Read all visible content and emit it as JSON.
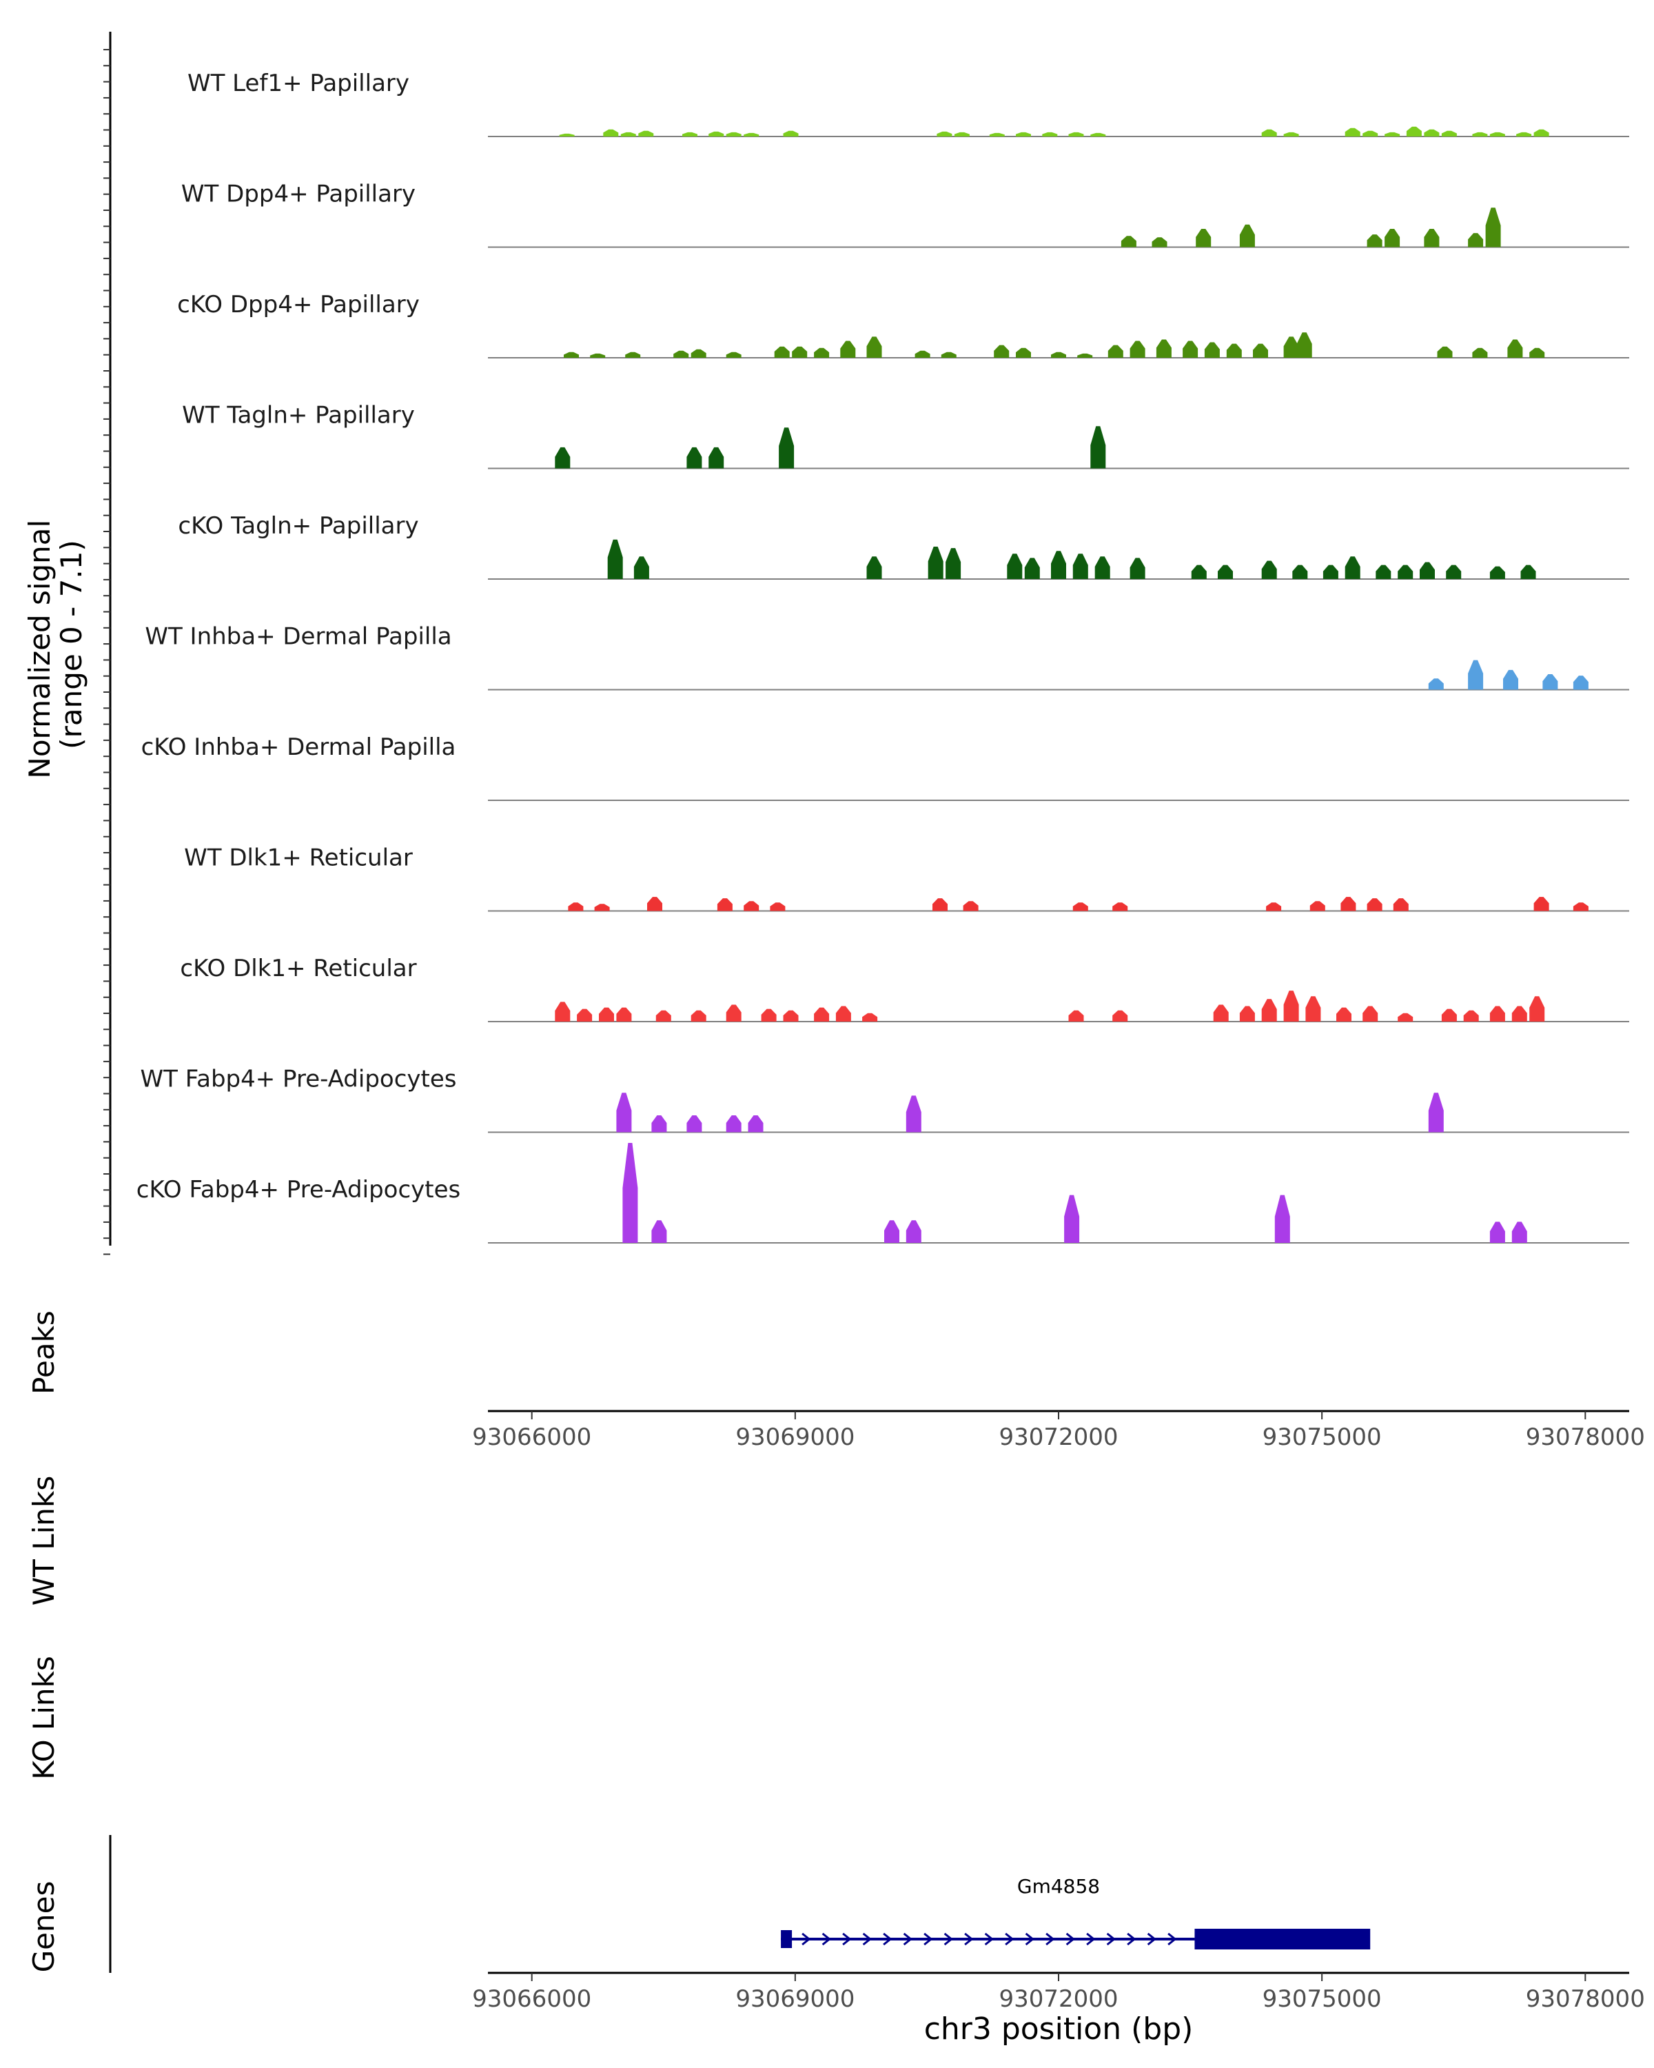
{
  "chart_data": {
    "type": "area",
    "title": "",
    "ylabel": "Normalized signal (range 0 - 7.1)",
    "ylabel_lines": [
      "Normalized signal",
      "(range 0 - 7.1)"
    ],
    "xlabel": "chr3 position (bp)",
    "xlim": [
      65500,
      78500
    ],
    "ylim": [
      0,
      7.1
    ],
    "x_ticks": [
      93066000,
      93069000,
      93072000,
      93075000,
      93078000
    ],
    "x_tick_labels": [
      "93066000",
      "93069000",
      "93072000",
      "93075000",
      "93078000"
    ],
    "x_offset": 93000000,
    "panel_labels": {
      "peaks": "Peaks",
      "wt_links": "WT Links",
      "ko_links": "KO Links",
      "genes": "Genes"
    },
    "gene": {
      "name": "Gm4858",
      "start": 68900,
      "end": 75550,
      "thick_start": 73550,
      "thick_end": 75550,
      "strand": "+"
    },
    "series": [
      {
        "name": "WT Lef1+ Papillary",
        "color": "#7CCD1E",
        "peaks": [
          [
            66400,
            0.2
          ],
          [
            66900,
            0.5
          ],
          [
            67100,
            0.3
          ],
          [
            67300,
            0.4
          ],
          [
            67800,
            0.3
          ],
          [
            68100,
            0.35
          ],
          [
            68300,
            0.3
          ],
          [
            68500,
            0.25
          ],
          [
            68950,
            0.4
          ],
          [
            70700,
            0.35
          ],
          [
            70900,
            0.3
          ],
          [
            71300,
            0.25
          ],
          [
            71600,
            0.3
          ],
          [
            71900,
            0.3
          ],
          [
            72200,
            0.3
          ],
          [
            72450,
            0.25
          ],
          [
            74400,
            0.5
          ],
          [
            74650,
            0.3
          ],
          [
            75350,
            0.6
          ],
          [
            75550,
            0.4
          ],
          [
            75800,
            0.3
          ],
          [
            76050,
            0.7
          ],
          [
            76250,
            0.5
          ],
          [
            76450,
            0.4
          ],
          [
            76800,
            0.3
          ],
          [
            77000,
            0.3
          ],
          [
            77300,
            0.3
          ],
          [
            77500,
            0.5
          ]
        ]
      },
      {
        "name": "WT Dpp4+ Papillary",
        "color": "#4A8C0C",
        "peaks": [
          [
            72800,
            0.8
          ],
          [
            73150,
            0.7
          ],
          [
            73650,
            1.3
          ],
          [
            74150,
            1.6
          ],
          [
            75600,
            0.9
          ],
          [
            75800,
            1.3
          ],
          [
            76250,
            1.3
          ],
          [
            76750,
            1.0
          ],
          [
            76950,
            2.8
          ]
        ]
      },
      {
        "name": "cKO Dpp4+ Papillary",
        "color": "#4A8C0C",
        "peaks": [
          [
            66450,
            0.4
          ],
          [
            66750,
            0.3
          ],
          [
            67150,
            0.4
          ],
          [
            67700,
            0.5
          ],
          [
            67900,
            0.6
          ],
          [
            68300,
            0.4
          ],
          [
            68850,
            0.8
          ],
          [
            69050,
            0.8
          ],
          [
            69300,
            0.7
          ],
          [
            69600,
            1.2
          ],
          [
            69900,
            1.5
          ],
          [
            70450,
            0.5
          ],
          [
            70750,
            0.4
          ],
          [
            71350,
            0.9
          ],
          [
            71600,
            0.7
          ],
          [
            72000,
            0.4
          ],
          [
            72300,
            0.3
          ],
          [
            72650,
            0.9
          ],
          [
            72900,
            1.2
          ],
          [
            73200,
            1.3
          ],
          [
            73500,
            1.2
          ],
          [
            73750,
            1.1
          ],
          [
            74000,
            1.0
          ],
          [
            74300,
            1.0
          ],
          [
            74650,
            1.5
          ],
          [
            74800,
            1.8
          ],
          [
            76400,
            0.8
          ],
          [
            76800,
            0.7
          ],
          [
            77200,
            1.3
          ],
          [
            77450,
            0.7
          ]
        ]
      },
      {
        "name": "WT Tagln+ Papillary",
        "color": "#0E5C0E",
        "peaks": [
          [
            66350,
            1.5
          ],
          [
            67850,
            1.5
          ],
          [
            68100,
            1.5
          ],
          [
            68900,
            2.9
          ],
          [
            72450,
            3.0
          ]
        ]
      },
      {
        "name": "cKO Tagln+ Papillary",
        "color": "#0E5C0E",
        "peaks": [
          [
            66950,
            2.8
          ],
          [
            67250,
            1.6
          ],
          [
            69900,
            1.6
          ],
          [
            70600,
            2.3
          ],
          [
            70800,
            2.2
          ],
          [
            71500,
            1.8
          ],
          [
            71700,
            1.5
          ],
          [
            72000,
            2.0
          ],
          [
            72250,
            1.8
          ],
          [
            72500,
            1.6
          ],
          [
            72900,
            1.5
          ],
          [
            73600,
            1.0
          ],
          [
            73900,
            1.0
          ],
          [
            74400,
            1.3
          ],
          [
            74750,
            1.0
          ],
          [
            75100,
            1.0
          ],
          [
            75350,
            1.6
          ],
          [
            75700,
            1.0
          ],
          [
            75950,
            1.0
          ],
          [
            76200,
            1.2
          ],
          [
            76500,
            1.0
          ],
          [
            77000,
            0.9
          ],
          [
            77350,
            1.0
          ]
        ]
      },
      {
        "name": "WT Inhba+ Dermal Papilla",
        "color": "#56A0E0",
        "peaks": [
          [
            76300,
            0.8
          ],
          [
            76750,
            2.1
          ],
          [
            77150,
            1.4
          ],
          [
            77600,
            1.1
          ],
          [
            77950,
            1.0
          ]
        ]
      },
      {
        "name": "cKO Inhba+ Dermal Papilla",
        "color": "#56A0E0",
        "peaks": []
      },
      {
        "name": "WT Dlk1+ Reticular",
        "color": "#EE3333",
        "peaks": [
          [
            66500,
            0.6
          ],
          [
            66800,
            0.5
          ],
          [
            67400,
            1.0
          ],
          [
            68200,
            0.9
          ],
          [
            68500,
            0.7
          ],
          [
            68800,
            0.6
          ],
          [
            70650,
            0.9
          ],
          [
            71000,
            0.7
          ],
          [
            72250,
            0.6
          ],
          [
            72700,
            0.6
          ],
          [
            74450,
            0.6
          ],
          [
            74950,
            0.7
          ],
          [
            75300,
            1.0
          ],
          [
            75600,
            0.9
          ],
          [
            75900,
            0.9
          ],
          [
            77500,
            1.0
          ],
          [
            77950,
            0.6
          ]
        ]
      },
      {
        "name": "cKO Dlk1+ Reticular",
        "color": "#F23A3A",
        "peaks": [
          [
            66350,
            1.4
          ],
          [
            66600,
            0.9
          ],
          [
            66850,
            1.0
          ],
          [
            67050,
            1.0
          ],
          [
            67500,
            0.8
          ],
          [
            67900,
            0.8
          ],
          [
            68300,
            1.2
          ],
          [
            68700,
            0.9
          ],
          [
            68950,
            0.8
          ],
          [
            69300,
            1.0
          ],
          [
            69550,
            1.1
          ],
          [
            69850,
            0.6
          ],
          [
            72200,
            0.8
          ],
          [
            72700,
            0.8
          ],
          [
            73850,
            1.2
          ],
          [
            74150,
            1.1
          ],
          [
            74400,
            1.6
          ],
          [
            74650,
            2.2
          ],
          [
            74900,
            1.8
          ],
          [
            75250,
            1.0
          ],
          [
            75550,
            1.1
          ],
          [
            75950,
            0.6
          ],
          [
            76450,
            0.9
          ],
          [
            76700,
            0.8
          ],
          [
            77000,
            1.1
          ],
          [
            77250,
            1.1
          ],
          [
            77450,
            1.8
          ]
        ]
      },
      {
        "name": "WT Fabp4+ Pre-Adipocytes",
        "color": "#AA3CE8",
        "peaks": [
          [
            67050,
            2.8
          ],
          [
            67450,
            1.2
          ],
          [
            67850,
            1.2
          ],
          [
            68300,
            1.2
          ],
          [
            68550,
            1.2
          ],
          [
            70350,
            2.6
          ],
          [
            76300,
            2.8
          ]
        ]
      },
      {
        "name": "cKO Fabp4+ Pre-Adipocytes",
        "color": "#AA3CE8",
        "peaks": [
          [
            67120,
            7.1
          ],
          [
            67450,
            1.6
          ],
          [
            70100,
            1.6
          ],
          [
            70350,
            1.6
          ],
          [
            72150,
            3.4
          ],
          [
            74550,
            3.4
          ],
          [
            77000,
            1.5
          ],
          [
            77250,
            1.5
          ]
        ]
      }
    ]
  }
}
